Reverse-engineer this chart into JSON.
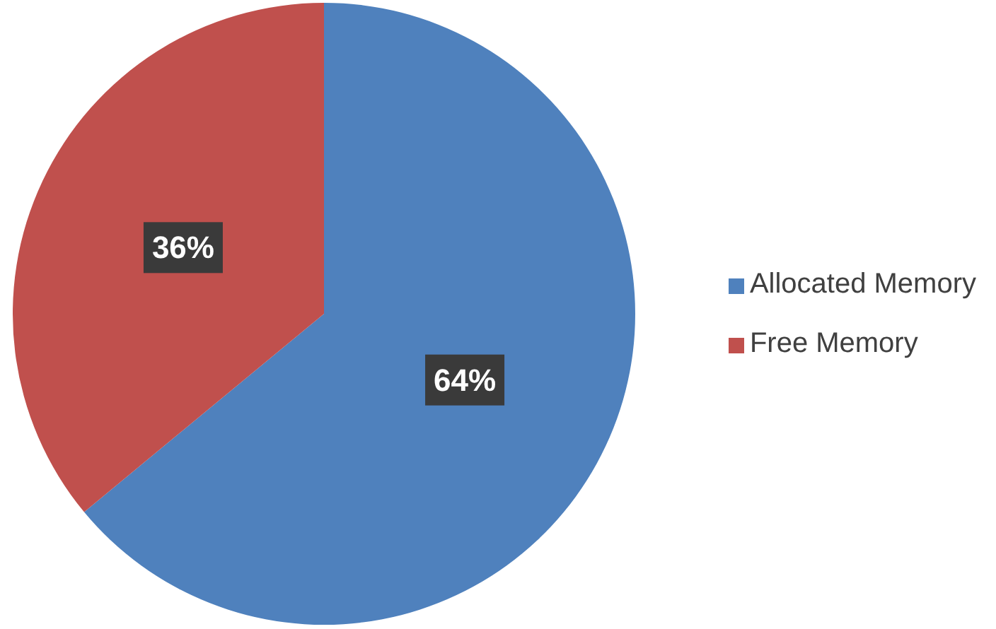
{
  "chart_data": {
    "type": "pie",
    "categories": [
      "Allocated Memory",
      "Free Memory"
    ],
    "values": [
      64,
      36
    ],
    "colors": [
      "#4f81bd",
      "#c0504d"
    ],
    "value_labels": [
      "64%",
      "36%"
    ],
    "legend": "right"
  }
}
